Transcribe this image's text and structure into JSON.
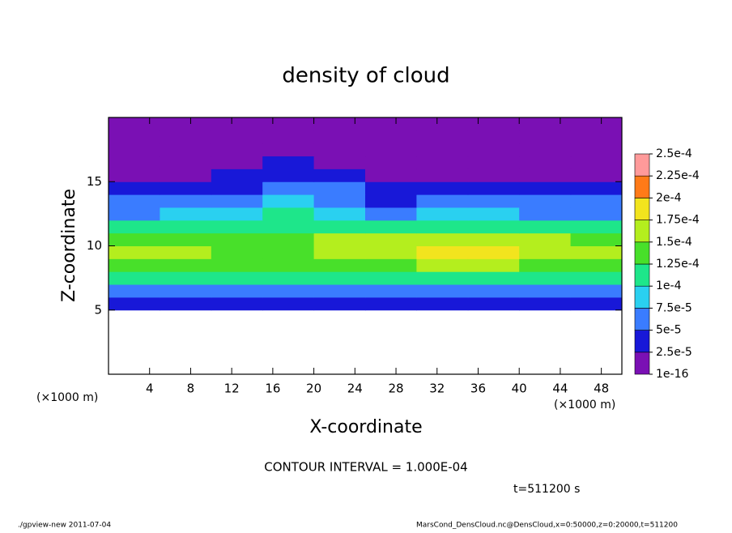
{
  "chart_data": {
    "type": "heatmap",
    "title": "density of cloud",
    "x_label": "X-coordinate",
    "y_label": "Z-coordinate",
    "x_unit": "(×1000 m)",
    "y_unit": "(×1000 m)",
    "contour_note": "CONTOUR INTERVAL = 1.000E-04",
    "time_note": "t=511200 s",
    "footer_left": "./gpview-new  2011-07-04",
    "footer_right": "MarsCond_DensCloud.nc@DensCloud,x=0:50000,z=0:20000,t=511200",
    "xlim": [
      0,
      50
    ],
    "ylim": [
      0,
      20
    ],
    "xticks": [
      4,
      8,
      12,
      16,
      20,
      24,
      28,
      32,
      36,
      40,
      44,
      48
    ],
    "yticks": [
      5,
      10,
      15
    ],
    "x": [
      2.5,
      7.5,
      12.5,
      17.5,
      22.5,
      27.5,
      32.5,
      37.5,
      42.5,
      47.5
    ],
    "z": [
      5.5,
      6.5,
      7.5,
      8.5,
      9.5,
      10.5,
      11.5,
      12.5,
      13.5,
      14.5,
      15.5,
      16.5,
      17.5,
      18.5,
      19.5
    ],
    "values": [
      [
        2.5e-05,
        3e-05,
        2.5e-05,
        2.5e-05,
        3e-05,
        3e-05,
        3e-05,
        3e-05,
        2.5e-05,
        2.5e-05
      ],
      [
        6e-05,
        6.5e-05,
        6e-05,
        5.5e-05,
        6.5e-05,
        6.5e-05,
        6.5e-05,
        6.5e-05,
        6e-05,
        6e-05
      ],
      [
        0.000105,
        0.000105,
        0.0001,
        0.0001,
        0.00011,
        0.00011,
        0.00011,
        0.00011,
        0.000105,
        0.000105
      ],
      [
        0.000135,
        0.000135,
        0.00013,
        0.00013,
        0.000145,
        0.000145,
        0.00015,
        0.00015,
        0.00014,
        0.00014
      ],
      [
        0.00015,
        0.00015,
        0.000145,
        0.00014,
        0.000165,
        0.00016,
        0.00018,
        0.00018,
        0.00016,
        0.000155
      ],
      [
        0.00014,
        0.00014,
        0.000135,
        0.00013,
        0.000155,
        0.00015,
        0.000165,
        0.00017,
        0.00015,
        0.000145
      ],
      [
        0.000105,
        0.000105,
        0.00011,
        0.00012,
        0.00011,
        0.000105,
        0.00011,
        0.00011,
        0.000105,
        0.000105
      ],
      [
        7e-05,
        7.5e-05,
        8.5e-05,
        0.000105,
        9e-05,
        7e-05,
        7.5e-05,
        7.5e-05,
        7e-05,
        7e-05
      ],
      [
        5e-05,
        5.2e-05,
        6.5e-05,
        8.5e-05,
        7e-05,
        4.5e-05,
        5e-05,
        5.2e-05,
        5e-05,
        5e-05
      ],
      [
        3.2e-05,
        3.5e-05,
        4.5e-05,
        6.5e-05,
        5e-05,
        2.8e-05,
        3.2e-05,
        3.5e-05,
        3.2e-05,
        3.2e-05
      ],
      [
        2e-05,
        2.2e-05,
        3e-05,
        4.5e-05,
        3e-05,
        1.5e-05,
        2e-05,
        2.2e-05,
        2e-05,
        2e-05
      ],
      [
        1e-05,
        1.2e-05,
        1.8e-05,
        2.5e-05,
        1.8e-05,
        8e-06,
        1e-05,
        1.2e-05,
        1e-05,
        1e-05
      ],
      [
        5e-06,
        5e-06,
        8e-06,
        1.2e-05,
        8e-06,
        4e-06,
        5e-06,
        6e-06,
        5e-06,
        5e-06
      ],
      [
        1e-06,
        1e-06,
        2e-06,
        3e-06,
        2e-06,
        1e-06,
        1e-06,
        1e-06,
        1e-06,
        1e-06
      ],
      [
        1e-07,
        1e-07,
        1e-07,
        1e-07,
        1e-07,
        1e-07,
        1e-07,
        1e-07,
        1e-07,
        1e-07
      ]
    ],
    "levels": [
      {
        "value": 1e-16,
        "label": "1e-16"
      },
      {
        "value": 2.5e-05,
        "label": "2.5e-5"
      },
      {
        "value": 5e-05,
        "label": "5e-5"
      },
      {
        "value": 7.5e-05,
        "label": "7.5e-5"
      },
      {
        "value": 0.0001,
        "label": "1e-4"
      },
      {
        "value": 0.000125,
        "label": "1.25e-4"
      },
      {
        "value": 0.00015,
        "label": "1.5e-4"
      },
      {
        "value": 0.000175,
        "label": "1.75e-4"
      },
      {
        "value": 0.0002,
        "label": "2e-4"
      },
      {
        "value": 0.000225,
        "label": "2.25e-4"
      },
      {
        "value": 0.00025,
        "label": "2.5e-4"
      }
    ],
    "colors": [
      "#7a10b4",
      "#1818d8",
      "#3a7cff",
      "#2ad0f0",
      "#1ee68a",
      "#48e02a",
      "#b4ee1e",
      "#f2e41e",
      "#ff7a18",
      "#ff9a9a"
    ]
  }
}
